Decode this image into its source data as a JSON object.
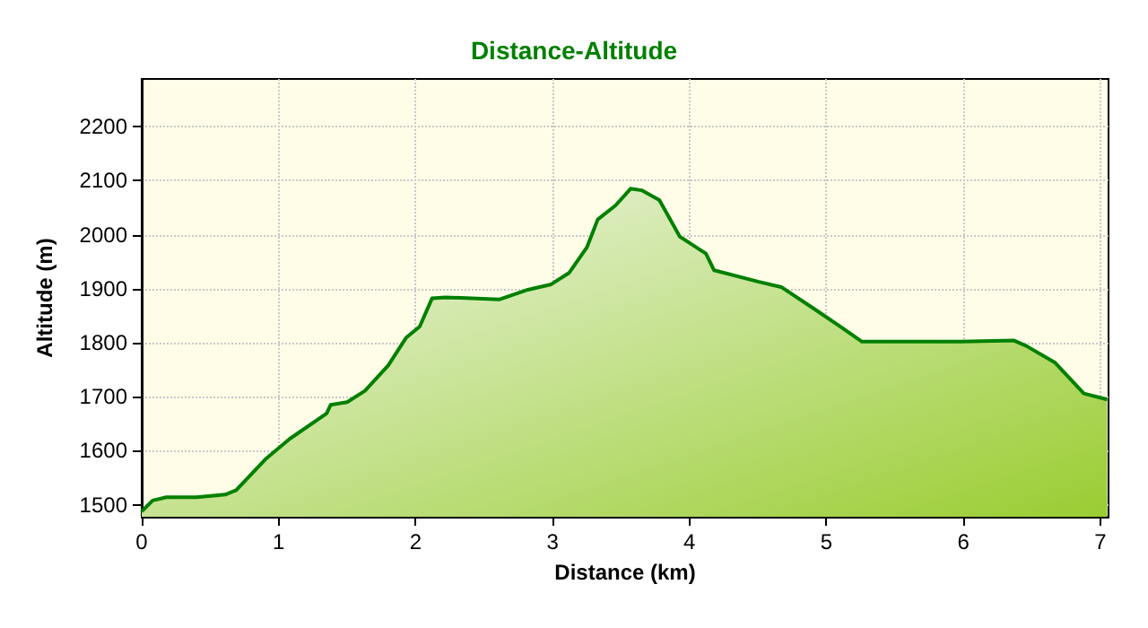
{
  "chart_data": {
    "type": "area",
    "title": "Distance-Altitude",
    "xlabel": "Distance (km)",
    "ylabel": "Altitude (m)",
    "x": [
      0,
      0.08,
      0.18,
      0.4,
      0.61,
      0.69,
      0.91,
      1.08,
      1.35,
      1.38,
      1.5,
      1.63,
      1.8,
      1.93,
      2.03,
      2.12,
      2.22,
      2.61,
      2.82,
      2.99,
      3.12,
      3.25,
      3.33,
      3.46,
      3.57,
      3.65,
      3.78,
      3.93,
      4.12,
      4.18,
      4.5,
      4.67,
      4.92,
      5.1,
      5.26,
      5.98,
      6.37,
      6.46,
      6.67,
      6.88,
      7.05
    ],
    "series": [
      {
        "color": "#008000",
        "values": [
          1488,
          1508,
          1514,
          1514,
          1519,
          1527,
          1586,
          1622,
          1669,
          1685,
          1690,
          1711,
          1758,
          1809,
          1830,
          1882,
          1884,
          1880,
          1898,
          1908,
          1929,
          1976,
          2028,
          2054,
          2085,
          2082,
          2064,
          1996,
          1965,
          1934,
          1913,
          1903,
          1861,
          1830,
          1802,
          1802,
          1804,
          1794,
          1763,
          1706,
          1695
        ]
      }
    ],
    "xlim": [
      0,
      7.06
    ],
    "xticks": [
      0,
      1,
      2,
      3,
      4,
      5,
      6,
      7
    ],
    "ylim": [
      1478,
      2288
    ],
    "yticks": [
      1500,
      1600,
      1700,
      1800,
      1900,
      2000,
      2100,
      2200
    ],
    "grid": true,
    "marker": "none",
    "line_style": "solid"
  }
}
